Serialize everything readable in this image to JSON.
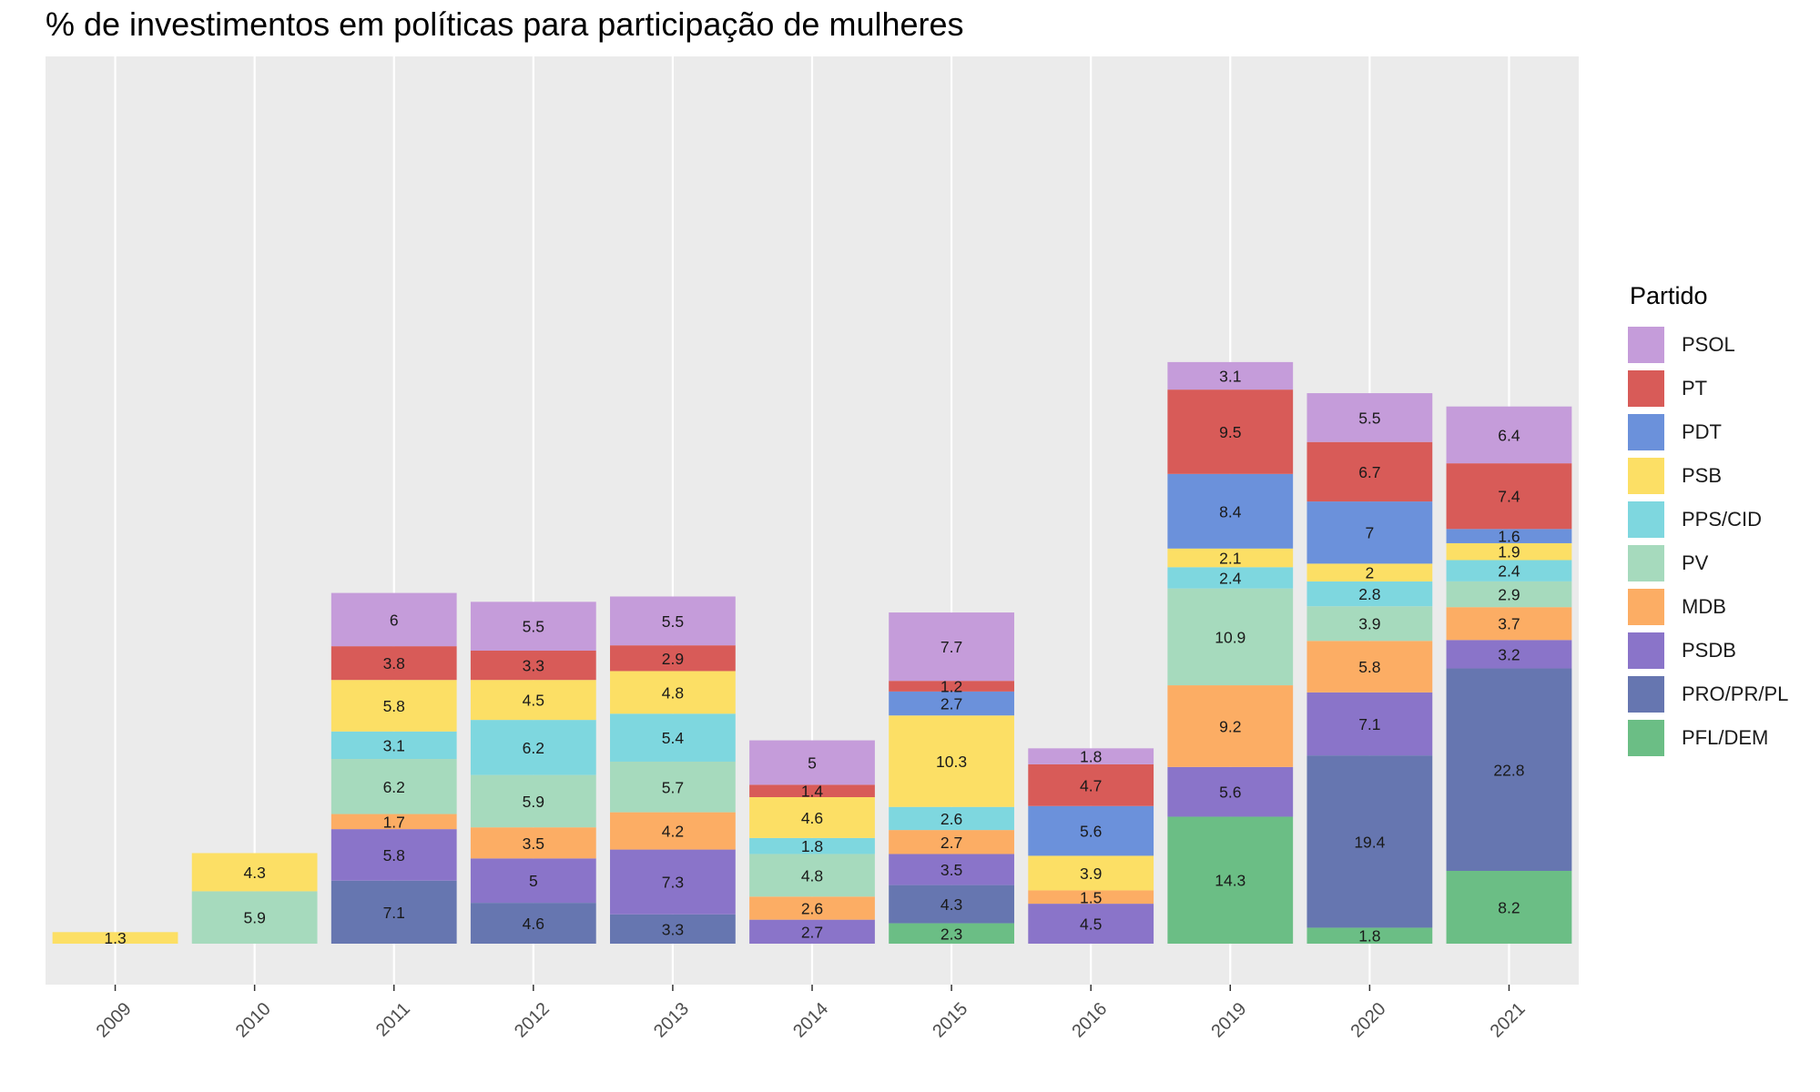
{
  "chart_data": {
    "type": "bar",
    "stacked": true,
    "title": "% de investimentos em políticas para participação de mulheres",
    "xlabel": "",
    "ylabel": "",
    "categories": [
      "2009",
      "2010",
      "2011",
      "2012",
      "2013",
      "2014",
      "2015",
      "2016",
      "2019",
      "2020",
      "2021"
    ],
    "ylim": [
      0,
      94.8
    ],
    "grid": true,
    "legend": {
      "title": "Partido",
      "position": "right"
    },
    "series": [
      {
        "name": "PFL/DEM",
        "color": "#6BBE85",
        "values": [
          null,
          null,
          null,
          null,
          null,
          null,
          2.3,
          null,
          14.3,
          1.8,
          8.2
        ]
      },
      {
        "name": "PRO/PR/PL",
        "color": "#6676B0",
        "values": [
          null,
          null,
          7.1,
          4.6,
          3.3,
          null,
          4.3,
          null,
          null,
          19.4,
          22.8
        ]
      },
      {
        "name": "PSDB",
        "color": "#8A74C9",
        "values": [
          null,
          null,
          5.8,
          5,
          7.3,
          2.7,
          3.5,
          4.5,
          5.6,
          7.1,
          3.2
        ]
      },
      {
        "name": "MDB",
        "color": "#FCAD64",
        "values": [
          null,
          null,
          1.7,
          3.5,
          4.2,
          2.6,
          2.7,
          1.5,
          9.2,
          5.8,
          3.7
        ]
      },
      {
        "name": "PV",
        "color": "#A6DABD",
        "values": [
          null,
          5.9,
          6.2,
          5.9,
          5.7,
          4.8,
          null,
          null,
          10.9,
          3.9,
          2.9
        ]
      },
      {
        "name": "PPS/CID",
        "color": "#7ED7DF",
        "values": [
          null,
          null,
          3.1,
          6.2,
          5.4,
          1.8,
          2.6,
          null,
          2.4,
          2.8,
          2.4
        ]
      },
      {
        "name": "PSB",
        "color": "#FCDF65",
        "values": [
          1.3,
          4.3,
          5.8,
          4.5,
          4.8,
          4.6,
          10.3,
          3.9,
          2.1,
          2,
          1.9
        ]
      },
      {
        "name": "PDT",
        "color": "#6B91DB",
        "values": [
          null,
          null,
          null,
          null,
          null,
          null,
          2.7,
          5.6,
          8.4,
          7,
          1.6
        ]
      },
      {
        "name": "PT",
        "color": "#D85B58",
        "values": [
          null,
          null,
          3.8,
          3.3,
          2.9,
          1.4,
          1.2,
          4.7,
          9.5,
          6.7,
          7.4
        ]
      },
      {
        "name": "PSOL",
        "color": "#C59CDA",
        "values": [
          null,
          null,
          6,
          5.5,
          5.5,
          5,
          7.7,
          1.8,
          3.1,
          5.5,
          6.4
        ]
      }
    ]
  }
}
